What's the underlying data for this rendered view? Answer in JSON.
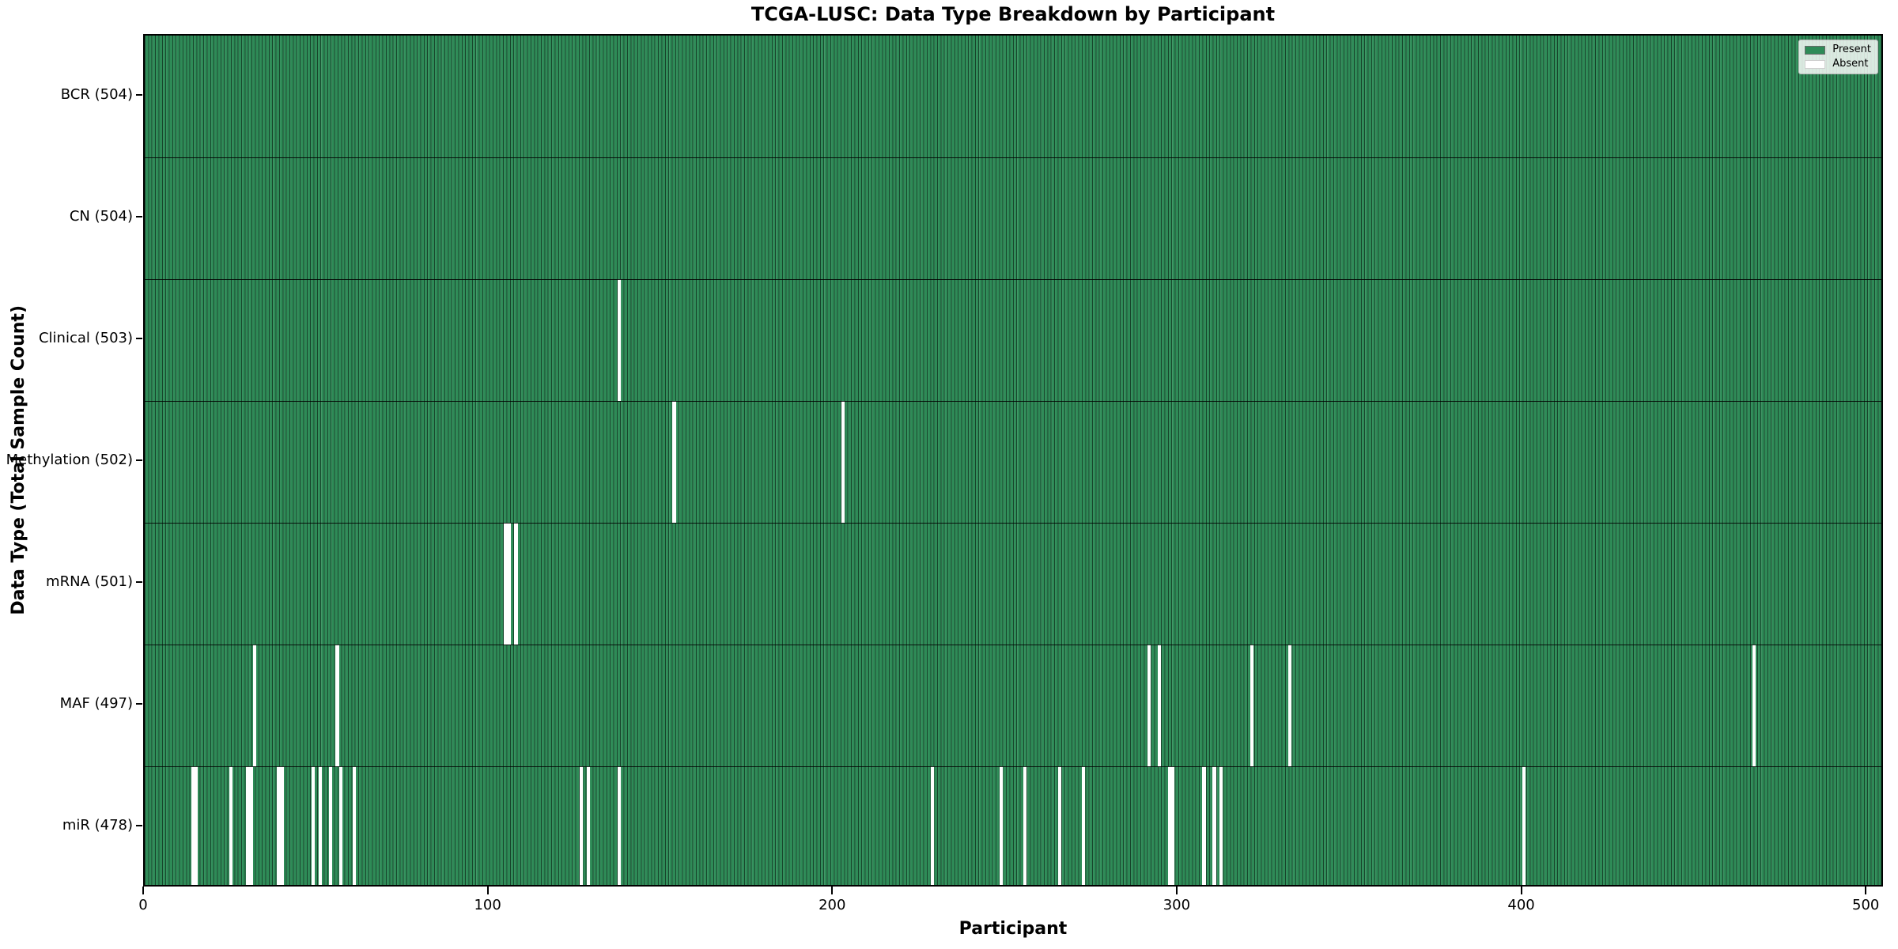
{
  "title": "TCGA-LUSC: Data Type Breakdown by Participant",
  "axes": {
    "x_label": "Participant",
    "y_label": "Data Type (Total Sample Count)"
  },
  "legend": {
    "present_label": "Present",
    "absent_label": "Absent"
  },
  "colors": {
    "present": "#2e8b57",
    "absent": "#ffffff",
    "bar_edge": "rgba(0,0,0,0.5)"
  },
  "chart_data": {
    "type": "heatmap",
    "title": "TCGA-LUSC: Data Type Breakdown by Participant",
    "xlabel": "Participant",
    "ylabel": "Data Type (Total Sample Count)",
    "x_ticks": [
      0,
      100,
      200,
      300,
      400,
      500
    ],
    "x_range": [
      0,
      505
    ],
    "total_participants": 504,
    "grid": false,
    "legend_position": "upper right",
    "legend_entries": [
      {
        "label": "Present",
        "color": "#2e8b57"
      },
      {
        "label": "Absent",
        "color": "#ffffff"
      }
    ],
    "rows": [
      {
        "name": "BCR",
        "label": "BCR (504)",
        "count": 504,
        "absent_participants": []
      },
      {
        "name": "CN",
        "label": "CN (504)",
        "count": 504,
        "absent_participants": []
      },
      {
        "name": "Clinical",
        "label": "Clinical (503)",
        "count": 503,
        "absent_participants": [
          138
        ]
      },
      {
        "name": "Methylation",
        "label": "Methylation (502)",
        "count": 502,
        "absent_participants": [
          154,
          203
        ]
      },
      {
        "name": "mRNA",
        "label": "mRNA (501)",
        "count": 501,
        "absent_participants": [
          105,
          106,
          108
        ]
      },
      {
        "name": "MAF",
        "label": "MAF (497)",
        "count": 497,
        "absent_participants": [
          32,
          56,
          292,
          295,
          322,
          333,
          468
        ]
      },
      {
        "name": "miR",
        "label": "miR (478)",
        "count": 478,
        "absent_participants": [
          14,
          15,
          25,
          30,
          31,
          39,
          40,
          49,
          51,
          54,
          57,
          61,
          127,
          129,
          138,
          229,
          249,
          256,
          266,
          273,
          298,
          299,
          308,
          311,
          313,
          401
        ]
      }
    ]
  }
}
